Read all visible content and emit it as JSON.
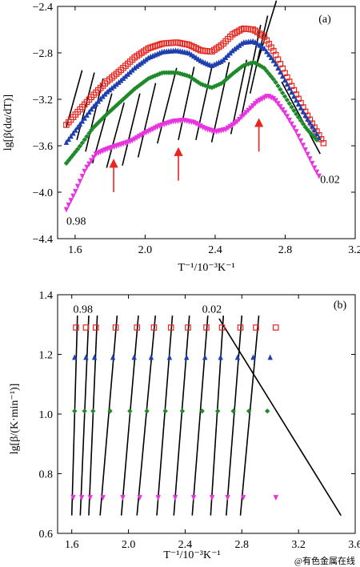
{
  "watermark": "@有色金属在线",
  "chart_data": [
    {
      "type": "scatter",
      "panel_label": "(a)",
      "xlabel": "T⁻¹/10⁻³K⁻¹",
      "ylabel": "lg[β(dα/dT)]",
      "xlim": [
        1.5,
        3.2
      ],
      "ylim": [
        -4.4,
        -2.4
      ],
      "xticks": [
        1.6,
        2.0,
        2.4,
        2.8,
        3.2
      ],
      "xtick_labels": [
        "1.6",
        "2.0",
        "2.4",
        "2.8",
        "3.2"
      ],
      "yticks": [
        -4.4,
        -4.0,
        -3.6,
        -3.2,
        -2.8,
        -2.4
      ],
      "ytick_labels": [
        "−4.4",
        "−4.0",
        "−3.6",
        "−3.2",
        "−2.8",
        "−2.4"
      ],
      "annotations": [
        {
          "text": "0.98",
          "x": 1.55,
          "y": -4.28
        },
        {
          "text": "0.02",
          "x": 3.0,
          "y": -3.92
        }
      ],
      "arrows": [
        {
          "x": 1.82,
          "y_tip": -3.75,
          "y_tail": -4.0,
          "color": "#e8261f"
        },
        {
          "x": 2.19,
          "y_tip": -3.65,
          "y_tail": -3.9,
          "color": "#e8261f"
        },
        {
          "x": 2.65,
          "y_tip": -3.4,
          "y_tail": -3.65,
          "color": "#e8261f"
        }
      ],
      "series": [
        {
          "marker": "square",
          "color": "#e8261f",
          "x_range": [
            1.55,
            3.02
          ],
          "spacing": 0.013,
          "points": [
            [
              1.55,
              -3.42
            ],
            [
              1.62,
              -3.3
            ],
            [
              1.7,
              -3.17
            ],
            [
              1.78,
              -3.05
            ],
            [
              1.86,
              -2.95
            ],
            [
              1.94,
              -2.84
            ],
            [
              2.02,
              -2.76
            ],
            [
              2.1,
              -2.72
            ],
            [
              2.18,
              -2.71
            ],
            [
              2.25,
              -2.73
            ],
            [
              2.32,
              -2.78
            ],
            [
              2.38,
              -2.79
            ],
            [
              2.44,
              -2.73
            ],
            [
              2.5,
              -2.64
            ],
            [
              2.56,
              -2.59
            ],
            [
              2.62,
              -2.6
            ],
            [
              2.68,
              -2.66
            ],
            [
              2.74,
              -2.8
            ],
            [
              2.8,
              -2.98
            ],
            [
              2.86,
              -3.15
            ],
            [
              2.92,
              -3.32
            ],
            [
              2.97,
              -3.45
            ],
            [
              3.02,
              -3.58
            ]
          ]
        },
        {
          "marker": "triangle-up",
          "color": "#1f3fb0",
          "x_range": [
            1.55,
            3.0
          ],
          "spacing": 0.013,
          "points": [
            [
              1.55,
              -3.57
            ],
            [
              1.62,
              -3.43
            ],
            [
              1.7,
              -3.27
            ],
            [
              1.78,
              -3.14
            ],
            [
              1.86,
              -3.04
            ],
            [
              1.94,
              -2.93
            ],
            [
              2.02,
              -2.84
            ],
            [
              2.1,
              -2.79
            ],
            [
              2.18,
              -2.78
            ],
            [
              2.25,
              -2.8
            ],
            [
              2.32,
              -2.87
            ],
            [
              2.38,
              -2.91
            ],
            [
              2.44,
              -2.87
            ],
            [
              2.5,
              -2.78
            ],
            [
              2.56,
              -2.71
            ],
            [
              2.62,
              -2.7
            ],
            [
              2.68,
              -2.76
            ],
            [
              2.74,
              -2.88
            ],
            [
              2.8,
              -3.04
            ],
            [
              2.86,
              -3.2
            ],
            [
              2.92,
              -3.35
            ],
            [
              2.97,
              -3.47
            ],
            [
              3.0,
              -3.55
            ]
          ]
        },
        {
          "marker": "diamond",
          "color": "#1f8a2a",
          "x_range": [
            1.55,
            2.98
          ],
          "spacing": 0.013,
          "points": [
            [
              1.55,
              -3.75
            ],
            [
              1.62,
              -3.62
            ],
            [
              1.7,
              -3.45
            ],
            [
              1.78,
              -3.33
            ],
            [
              1.86,
              -3.22
            ],
            [
              1.94,
              -3.11
            ],
            [
              2.02,
              -3.02
            ],
            [
              2.1,
              -2.97
            ],
            [
              2.18,
              -2.97
            ],
            [
              2.25,
              -3.0
            ],
            [
              2.32,
              -3.07
            ],
            [
              2.38,
              -3.1
            ],
            [
              2.44,
              -3.06
            ],
            [
              2.5,
              -2.98
            ],
            [
              2.56,
              -2.91
            ],
            [
              2.62,
              -2.88
            ],
            [
              2.68,
              -2.93
            ],
            [
              2.74,
              -3.04
            ],
            [
              2.8,
              -3.18
            ],
            [
              2.86,
              -3.32
            ],
            [
              2.92,
              -3.45
            ],
            [
              2.98,
              -3.55
            ]
          ]
        },
        {
          "marker": "triangle-down",
          "color": "#e833e0",
          "x_range": [
            1.55,
            3.0
          ],
          "spacing": 0.013,
          "points": [
            [
              1.55,
              -4.15
            ],
            [
              1.6,
              -4.0
            ],
            [
              1.66,
              -3.8
            ],
            [
              1.72,
              -3.67
            ],
            [
              1.78,
              -3.63
            ],
            [
              1.84,
              -3.6
            ],
            [
              1.92,
              -3.56
            ],
            [
              2.0,
              -3.49
            ],
            [
              2.08,
              -3.43
            ],
            [
              2.16,
              -3.39
            ],
            [
              2.22,
              -3.38
            ],
            [
              2.28,
              -3.4
            ],
            [
              2.34,
              -3.45
            ],
            [
              2.4,
              -3.48
            ],
            [
              2.46,
              -3.46
            ],
            [
              2.52,
              -3.4
            ],
            [
              2.58,
              -3.31
            ],
            [
              2.64,
              -3.22
            ],
            [
              2.7,
              -3.17
            ],
            [
              2.74,
              -3.2
            ],
            [
              2.8,
              -3.32
            ],
            [
              2.86,
              -3.47
            ],
            [
              2.92,
              -3.65
            ],
            [
              2.97,
              -3.8
            ],
            [
              3.0,
              -3.88
            ]
          ]
        }
      ],
      "fit_lines": [
        [
          [
            1.55,
            -3.44
          ],
          [
            1.64,
            -2.95
          ]
        ],
        [
          [
            1.61,
            -3.55
          ],
          [
            1.71,
            -2.97
          ]
        ],
        [
          [
            1.66,
            -3.65
          ],
          [
            1.76,
            -3.02
          ]
        ],
        [
          [
            1.7,
            -3.75
          ],
          [
            1.81,
            -3.15
          ]
        ],
        [
          [
            1.78,
            -3.79
          ],
          [
            1.88,
            -3.23
          ]
        ],
        [
          [
            1.87,
            -3.77
          ],
          [
            1.97,
            -3.15
          ]
        ],
        [
          [
            1.96,
            -3.7
          ],
          [
            2.06,
            -3.06
          ]
        ],
        [
          [
            2.07,
            -3.58
          ],
          [
            2.18,
            -2.93
          ]
        ],
        [
          [
            2.19,
            -3.55
          ],
          [
            2.28,
            -2.92
          ]
        ],
        [
          [
            2.29,
            -3.55
          ],
          [
            2.38,
            -2.93
          ]
        ],
        [
          [
            2.38,
            -3.57
          ],
          [
            2.48,
            -2.88
          ]
        ],
        [
          [
            2.49,
            -3.5
          ],
          [
            2.58,
            -2.86
          ]
        ],
        [
          [
            2.55,
            -3.35
          ],
          [
            2.66,
            -2.56
          ]
        ],
        [
          [
            2.6,
            -3.15
          ],
          [
            2.7,
            -2.48
          ]
        ],
        [
          [
            2.64,
            -2.89
          ],
          [
            2.75,
            -2.35
          ]
        ],
        [
          [
            2.78,
            -3.05
          ],
          [
            3.0,
            -3.67
          ]
        ]
      ]
    },
    {
      "type": "scatter",
      "panel_label": "(b)",
      "xlabel": "T⁻¹/10⁻³K⁻¹",
      "ylabel": "lg[β/(K·min⁻¹)]",
      "xlim": [
        1.5,
        3.6
      ],
      "ylim": [
        0.6,
        1.4
      ],
      "xticks": [
        1.6,
        2.0,
        2.4,
        2.8,
        3.2,
        3.6
      ],
      "xtick_labels": [
        "1.6",
        "2.0",
        "2.4",
        "2.8",
        "3.2",
        "3.6"
      ],
      "yticks": [
        0.6,
        0.8,
        1.0,
        1.2,
        1.4
      ],
      "ytick_labels": [
        "0.6",
        "0.8",
        "1.0",
        "1.2",
        "1.4"
      ],
      "annotations": [
        {
          "text": "0.98",
          "x": 1.61,
          "y": 1.34
        },
        {
          "text": "0.02",
          "x": 2.52,
          "y": 1.34
        }
      ],
      "series": [
        {
          "marker": "square",
          "color": "#e8261f",
          "y": 1.29,
          "x": [
            1.63,
            1.7,
            1.77,
            1.91,
            2.06,
            2.18,
            2.3,
            2.42,
            2.55,
            2.66,
            2.79,
            2.9,
            3.04
          ]
        },
        {
          "marker": "triangle-up",
          "color": "#1f3fb0",
          "y": 1.19,
          "x": [
            1.62,
            1.7,
            1.76,
            1.89,
            2.04,
            2.16,
            2.29,
            2.41,
            2.54,
            2.65,
            2.77,
            2.88,
            3.0
          ]
        },
        {
          "marker": "diamond",
          "color": "#1f8a2a",
          "y": 1.01,
          "x": [
            1.62,
            1.69,
            1.75,
            1.87,
            2.01,
            2.13,
            2.26,
            2.38,
            2.52,
            2.63,
            2.74,
            2.85,
            2.98
          ]
        },
        {
          "marker": "triangle-down",
          "color": "#e833e0",
          "y": 0.72,
          "x": [
            1.61,
            1.67,
            1.73,
            1.82,
            1.96,
            2.08,
            2.21,
            2.33,
            2.46,
            2.59,
            2.7,
            2.81,
            3.04
          ]
        }
      ],
      "fit_lines": [
        [
          [
            1.6,
            0.66
          ],
          [
            1.64,
            1.33
          ]
        ],
        [
          [
            1.66,
            0.66
          ],
          [
            1.72,
            1.33
          ]
        ],
        [
          [
            1.72,
            0.66
          ],
          [
            1.78,
            1.33
          ]
        ],
        [
          [
            1.8,
            0.66
          ],
          [
            1.92,
            1.33
          ]
        ],
        [
          [
            1.95,
            0.66
          ],
          [
            2.07,
            1.33
          ]
        ],
        [
          [
            2.06,
            0.66
          ],
          [
            2.19,
            1.33
          ]
        ],
        [
          [
            2.2,
            0.66
          ],
          [
            2.31,
            1.33
          ]
        ],
        [
          [
            2.32,
            0.66
          ],
          [
            2.43,
            1.33
          ]
        ],
        [
          [
            2.45,
            0.66
          ],
          [
            2.56,
            1.33
          ]
        ],
        [
          [
            2.58,
            0.66
          ],
          [
            2.67,
            1.33
          ]
        ],
        [
          [
            2.69,
            0.66
          ],
          [
            2.8,
            1.33
          ]
        ],
        [
          [
            2.79,
            0.66
          ],
          [
            2.92,
            1.33
          ]
        ],
        [
          [
            2.64,
            1.32
          ],
          [
            3.5,
            0.66
          ]
        ]
      ]
    }
  ]
}
